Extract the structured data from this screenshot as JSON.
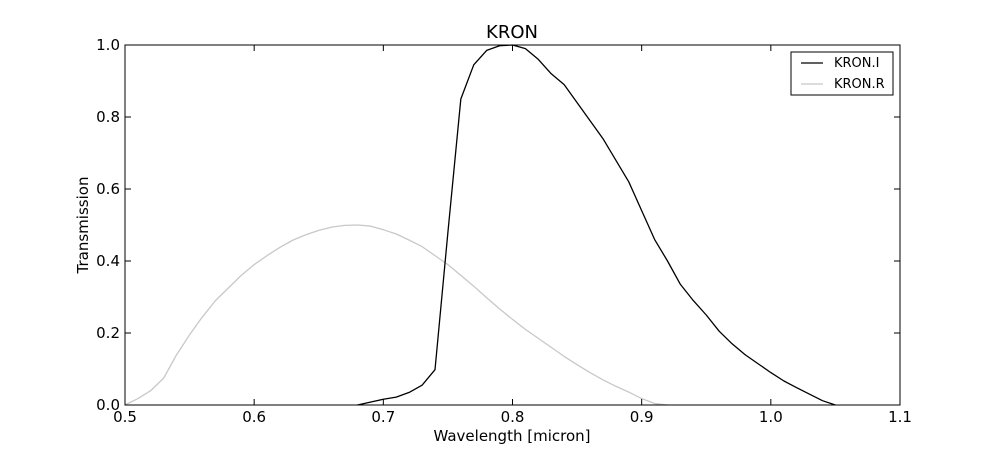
{
  "chart_data": {
    "type": "line",
    "title": "KRON",
    "xlabel": "Wavelength [micron]",
    "ylabel": "Transmission",
    "xlim": [
      0.5,
      1.1
    ],
    "ylim": [
      0.0,
      1.0
    ],
    "xticks": [
      "0.5",
      "0.6",
      "0.7",
      "0.8",
      "0.9",
      "1.0",
      "1.1"
    ],
    "yticks": [
      "0.0",
      "0.2",
      "0.4",
      "0.6",
      "0.8",
      "1.0"
    ],
    "grid": false,
    "legend_position": "top-right",
    "series": [
      {
        "name": "KRON.I",
        "color": "#000000",
        "x": [
          0.68,
          0.69,
          0.7,
          0.71,
          0.72,
          0.73,
          0.74,
          0.75,
          0.76,
          0.77,
          0.78,
          0.79,
          0.8,
          0.81,
          0.82,
          0.83,
          0.84,
          0.85,
          0.86,
          0.87,
          0.88,
          0.89,
          0.9,
          0.91,
          0.92,
          0.93,
          0.94,
          0.95,
          0.96,
          0.97,
          0.98,
          0.99,
          1.0,
          1.01,
          1.02,
          1.03,
          1.04,
          1.05
        ],
        "y": [
          0.0,
          0.008,
          0.016,
          0.022,
          0.035,
          0.055,
          0.098,
          0.48,
          0.85,
          0.945,
          0.985,
          0.998,
          1.0,
          0.99,
          0.96,
          0.92,
          0.89,
          0.84,
          0.79,
          0.74,
          0.68,
          0.62,
          0.54,
          0.46,
          0.4,
          0.335,
          0.29,
          0.25,
          0.205,
          0.17,
          0.14,
          0.115,
          0.09,
          0.067,
          0.048,
          0.03,
          0.012,
          0.0
        ]
      },
      {
        "name": "KRON.R",
        "color": "#c8c8c8",
        "x": [
          0.5,
          0.51,
          0.52,
          0.53,
          0.54,
          0.55,
          0.56,
          0.57,
          0.58,
          0.59,
          0.6,
          0.61,
          0.62,
          0.63,
          0.64,
          0.65,
          0.66,
          0.67,
          0.68,
          0.69,
          0.7,
          0.71,
          0.72,
          0.73,
          0.74,
          0.75,
          0.76,
          0.77,
          0.78,
          0.79,
          0.8,
          0.81,
          0.82,
          0.83,
          0.84,
          0.85,
          0.86,
          0.87,
          0.88,
          0.89,
          0.9,
          0.91,
          0.92
        ],
        "y": [
          0.0,
          0.018,
          0.04,
          0.075,
          0.14,
          0.195,
          0.245,
          0.29,
          0.325,
          0.36,
          0.39,
          0.415,
          0.438,
          0.458,
          0.473,
          0.485,
          0.494,
          0.499,
          0.5,
          0.497,
          0.487,
          0.475,
          0.458,
          0.44,
          0.415,
          0.39,
          0.36,
          0.33,
          0.298,
          0.267,
          0.238,
          0.21,
          0.185,
          0.16,
          0.135,
          0.112,
          0.09,
          0.07,
          0.052,
          0.036,
          0.018,
          0.004,
          0.0
        ]
      }
    ]
  }
}
